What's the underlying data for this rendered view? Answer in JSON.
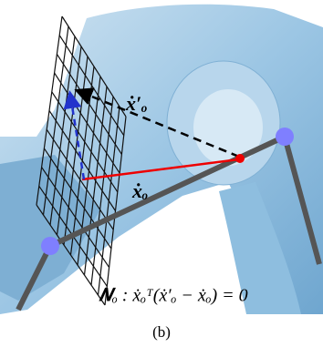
{
  "figure": {
    "labels": {
      "projected_velocity": "ẋ′ₒ",
      "velocity": "ẋₒ",
      "constraint": "𝑵ₒ : ẋₒᵀ(ẋ′ₒ − ẋₒ) = 0"
    },
    "caption": "(b)"
  }
}
